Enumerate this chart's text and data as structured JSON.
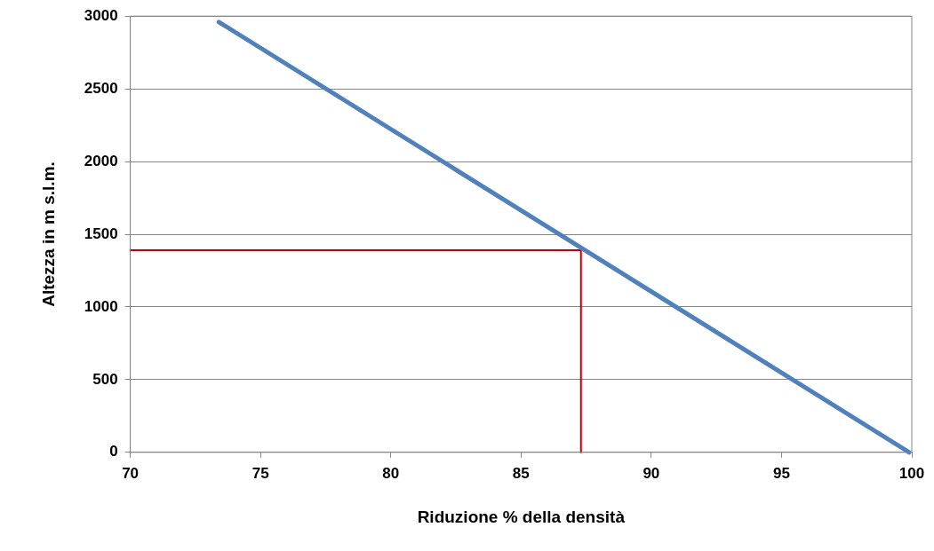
{
  "chart_data": {
    "type": "line",
    "xlabel": "Riduzione % della densità",
    "ylabel": "Altezza in m s.l.m.",
    "xlim": [
      70,
      100
    ],
    "xticks": [
      70,
      75,
      80,
      85,
      90,
      95,
      100
    ],
    "ylim": [
      0,
      3000
    ],
    "yticks": [
      0,
      500,
      1000,
      1500,
      2000,
      2500,
      3000
    ],
    "grid": "y",
    "legend": false,
    "marker": "none",
    "line_style": "solid",
    "series": [
      {
        "color": "#4f81bd",
        "x": [
          73.4,
          99.9
        ],
        "values": [
          2960,
          0
        ]
      },
      {
        "color": "#c00000",
        "x": [
          70,
          87.3,
          87.3
        ],
        "values": [
          1390,
          1390,
          0
        ]
      }
    ]
  }
}
